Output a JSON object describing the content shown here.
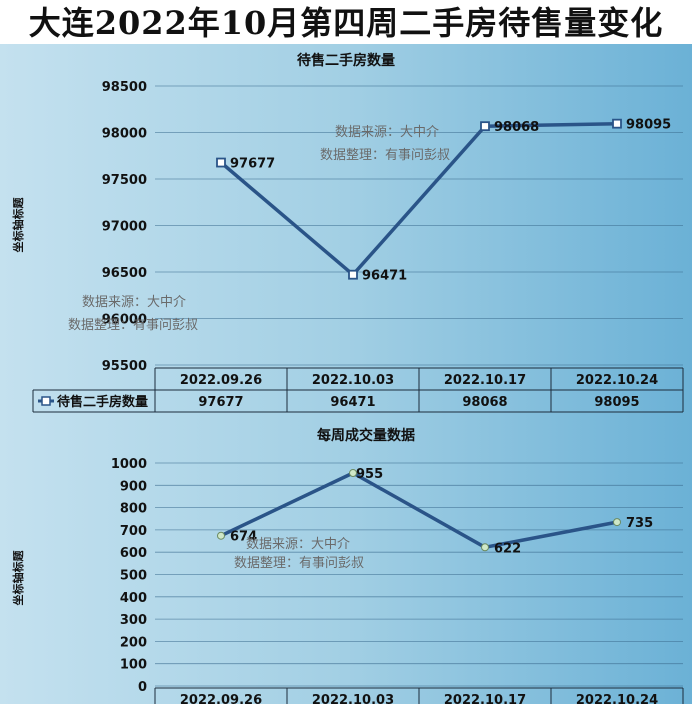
{
  "title": "大连2022年10月第四周二手房待售量变化",
  "watermark": {
    "source": "数据来源：大中介",
    "editor": "数据整理：有事问彭叔"
  },
  "chart_data": [
    {
      "type": "line",
      "title": "待售二手房数量",
      "ylabel": "坐标轴标题",
      "categories": [
        "2022.09.26",
        "2022.10.03",
        "2022.10.17",
        "2022.10.24"
      ],
      "series": [
        {
          "name": "待售二手房数量",
          "values": [
            97677,
            96471,
            98068,
            98095
          ],
          "color": "#2a5488"
        }
      ],
      "ylim": [
        95500,
        98500
      ],
      "yticks": [
        95500,
        96000,
        96500,
        97000,
        97500,
        98000,
        98500
      ],
      "grid": true,
      "legend": "data-table",
      "data_table": true
    },
    {
      "type": "line",
      "title": "每周成交量数据",
      "ylabel": "坐标轴标题",
      "categories": [
        "2022.09.26",
        "2022.10.03",
        "2022.10.17",
        "2022.10.24"
      ],
      "series": [
        {
          "values": [
            674,
            955,
            622,
            735
          ],
          "color": "#2a5488"
        }
      ],
      "ylim": [
        0,
        1000
      ],
      "yticks": [
        0,
        100,
        200,
        300,
        400,
        500,
        600,
        700,
        800,
        900,
        1000
      ],
      "grid": true,
      "data_table": true
    }
  ]
}
